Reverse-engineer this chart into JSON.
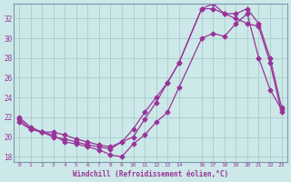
{
  "xlabel": "Windchill (Refroidissement éolien,°C)",
  "bg_color": "#cce8e8",
  "grid_color": "#aacccc",
  "line_color": "#993399",
  "ylim": [
    17.5,
    33.5
  ],
  "yticks": [
    18,
    20,
    22,
    24,
    26,
    28,
    30,
    32
  ],
  "xlim": [
    -0.5,
    23.5
  ],
  "xticks": [
    0,
    1,
    2,
    3,
    4,
    5,
    6,
    7,
    8,
    9,
    10,
    11,
    12,
    13,
    14,
    16,
    17,
    18,
    19,
    20,
    21,
    22,
    23
  ],
  "line1_x": [
    0,
    1,
    2,
    3,
    4,
    5,
    6,
    7,
    8,
    9,
    10,
    11,
    12,
    13,
    14,
    16,
    17,
    18,
    19,
    20,
    21,
    22,
    23
  ],
  "line1_y": [
    21.8,
    20.8,
    20.5,
    20.2,
    19.5,
    19.3,
    19.0,
    18.7,
    18.2,
    18.0,
    19.3,
    20.2,
    21.5,
    22.5,
    25.0,
    30.0,
    30.5,
    30.2,
    31.5,
    32.5,
    28.0,
    24.8,
    22.8
  ],
  "line2_x": [
    0,
    1,
    2,
    3,
    4,
    5,
    6,
    7,
    8,
    9,
    10,
    11,
    12,
    13,
    14,
    16,
    17,
    18,
    19,
    20,
    21,
    22,
    23
  ],
  "line2_y": [
    22.0,
    21.0,
    20.5,
    20.5,
    20.2,
    19.8,
    19.5,
    19.2,
    19.0,
    19.5,
    20.8,
    22.5,
    24.0,
    25.5,
    27.5,
    33.0,
    33.0,
    32.5,
    32.5,
    33.0,
    31.5,
    28.0,
    23.0
  ],
  "line3_x": [
    0,
    1,
    2,
    3,
    4,
    5,
    6,
    7,
    8,
    9,
    10,
    11,
    12,
    13,
    14,
    16,
    17,
    18,
    19,
    20,
    21,
    22,
    23
  ],
  "line3_y": [
    21.5,
    20.8,
    20.5,
    20.0,
    19.8,
    19.5,
    19.2,
    19.0,
    18.8,
    19.5,
    20.0,
    21.8,
    23.5,
    25.5,
    27.5,
    33.0,
    33.5,
    32.5,
    32.0,
    31.5,
    31.2,
    27.5,
    22.5
  ]
}
